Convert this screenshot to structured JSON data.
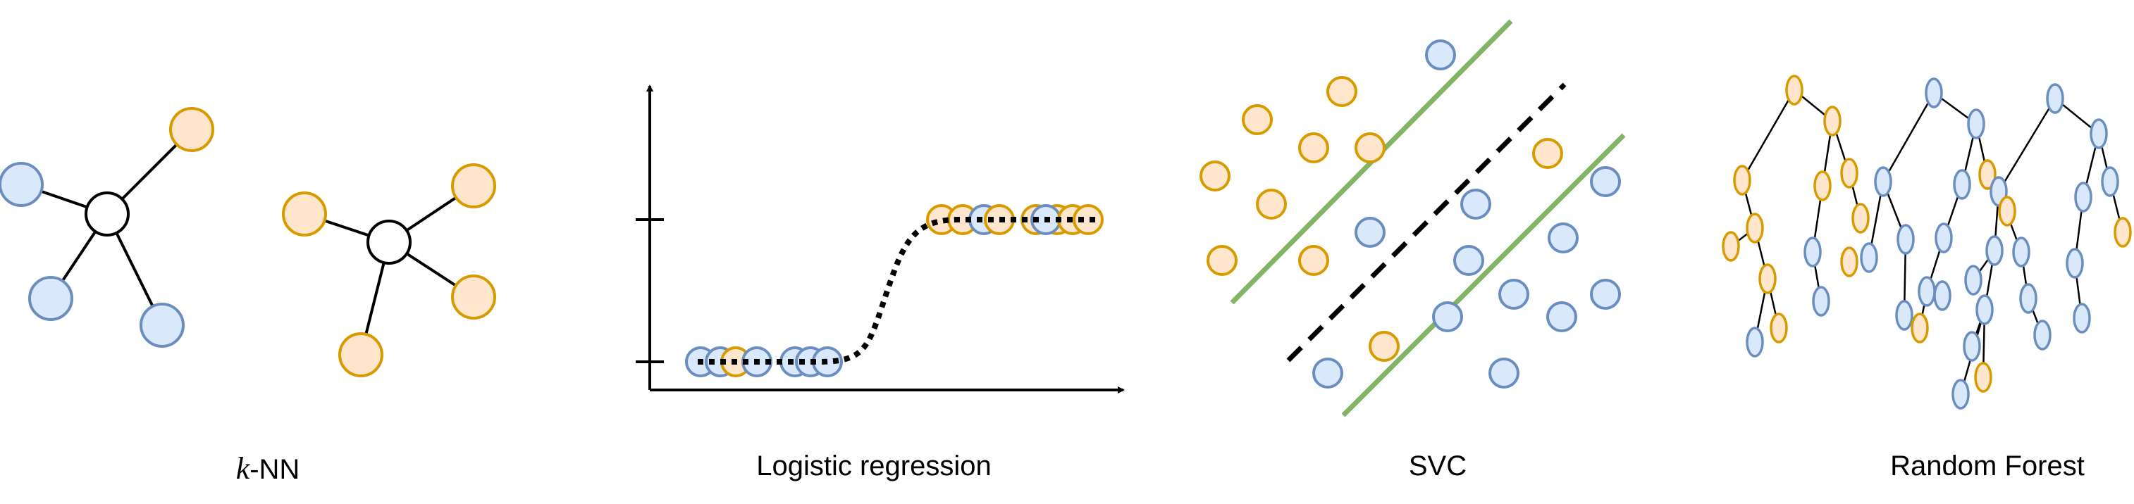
{
  "colors": {
    "blue_fill": "#dae8fc",
    "blue_stroke": "#6c8ebf",
    "orange_fill": "#ffe6cc",
    "orange_stroke": "#d79b00",
    "green": "#82b366",
    "black": "#000000"
  },
  "panels": [
    {
      "id": "knn",
      "caption_math": "k",
      "caption": "-NN"
    },
    {
      "id": "logistic",
      "caption": "Logistic regression"
    },
    {
      "id": "svc",
      "caption": "SVC"
    },
    {
      "id": "random_forest",
      "caption": "Random Forest"
    }
  ],
  "icons": [
    "knn-graph-icon",
    "sigmoid-plot-icon",
    "svm-margin-icon",
    "decision-tree-forest-icon"
  ]
}
